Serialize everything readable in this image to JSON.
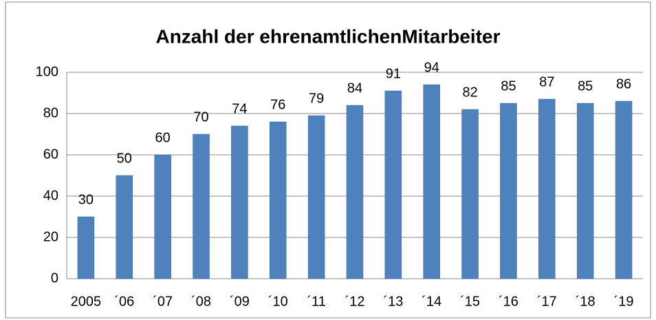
{
  "chart_data": {
    "type": "bar",
    "title": "Anzahl der ehrenamtlichenMitarbeiter",
    "categories": [
      "2005",
      "´06",
      "´07",
      "´08",
      "´09",
      "´10",
      "´11",
      "´12",
      "´13",
      "´14",
      "´15",
      "´16",
      "´17",
      "´18",
      "´19"
    ],
    "values": [
      30,
      50,
      60,
      70,
      74,
      76,
      79,
      84,
      91,
      94,
      82,
      85,
      87,
      85,
      86
    ],
    "color": "#4f81bd",
    "ylim": [
      0,
      100
    ],
    "yticks": [
      0,
      20,
      40,
      60,
      80,
      100
    ],
    "grid": true
  }
}
